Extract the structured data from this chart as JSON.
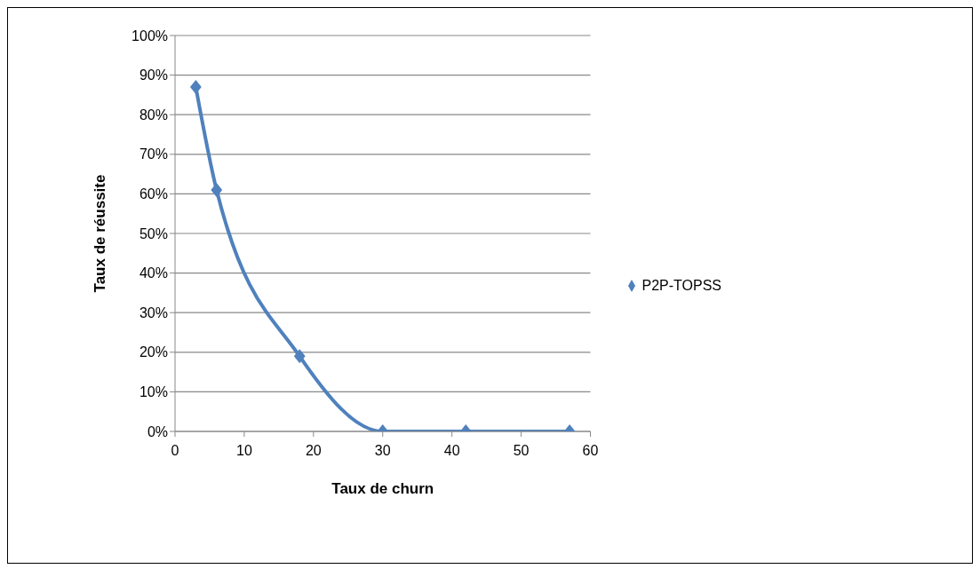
{
  "chart_data": {
    "type": "line",
    "xlabel": "Taux de churn",
    "ylabel": "Taux de réussite",
    "x": [
      3,
      6,
      18,
      30,
      42,
      57
    ],
    "series": [
      {
        "name": "P2P-TOPSS",
        "color": "#4f81bd",
        "values": [
          87,
          61,
          19,
          0,
          0,
          0
        ]
      }
    ],
    "xlim": [
      0,
      60
    ],
    "xticks": [
      0,
      10,
      20,
      30,
      40,
      50,
      60
    ],
    "ylim": [
      0,
      100
    ],
    "yticks": [
      {
        "value": 0,
        "label": "0%"
      },
      {
        "value": 10,
        "label": "10%"
      },
      {
        "value": 20,
        "label": "20%"
      },
      {
        "value": 30,
        "label": "30%"
      },
      {
        "value": 40,
        "label": "40%"
      },
      {
        "value": 50,
        "label": "50%"
      },
      {
        "value": 60,
        "label": "60%"
      },
      {
        "value": 70,
        "label": "70%"
      },
      {
        "value": 80,
        "label": "80%"
      },
      {
        "value": 90,
        "label": "90%"
      },
      {
        "value": 100,
        "label": "100%"
      }
    ],
    "grid": "y",
    "legend": "right",
    "marker": "diamond",
    "line_style": "solid"
  }
}
